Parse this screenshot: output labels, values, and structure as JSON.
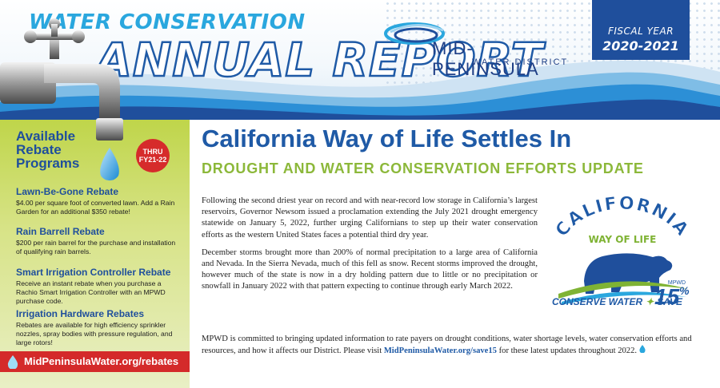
{
  "header": {
    "kicker": "WATER CONSERVATION",
    "title": "ANNUAL REPORT",
    "logo_name": "MID-PENINSULA",
    "logo_sub": "WATER DISTRICT",
    "fiscal_label": "FISCAL YEAR",
    "fiscal_year": "2020-2021"
  },
  "sidebar": {
    "title_lines": [
      "Available",
      "Rebate",
      "Programs"
    ],
    "badge_line1": "THRU",
    "badge_line2": "FY21-22",
    "rebates": [
      {
        "title": "Lawn-Be-Gone Rebate",
        "desc": "$4.00 per square foot of converted lawn. Add a Rain Garden for an additional $350 rebate!"
      },
      {
        "title": "Rain Barrell Rebate",
        "desc": "$200 per rain barrel for the purchase and installation of qualifying rain barrels."
      },
      {
        "title": "Smart Irrigation Controller Rebate",
        "desc": "Receive an instant rebate when you purchase a Rachio Smart Irrigation Controller with an MPWD purchase code."
      },
      {
        "title": "Irrigation Hardware Rebates",
        "desc": "Rebates are available for high efficiency sprinkler nozzles, spray bodies with pressure regulation, and large rotors!"
      }
    ],
    "url": "MidPeninsulaWater.org/rebates"
  },
  "main": {
    "headline": "California Way of Life Settles In",
    "subhead": "DROUGHT AND WATER CONSERVATION EFFORTS UPDATE",
    "para1": "Following the second driest year on record and with near-record low storage in California’s largest reservoirs, Governor Newsom issued a proclamation extending the July 2021 drought emergency statewide on January 5, 2022, further urging Californians to step up their water conservation efforts as the western United States faces a potential third dry year.",
    "para2": "December storms brought more than 200% of normal precipitation to a large area of California and Nevada. In the Sierra Nevada, much of this fell as snow. Recent storms improved the drought, however much of the state is now in a dry holding pattern due to little or no precipitation or snowfall in January 2022 with that pattern expecting to continue through early March 2022.",
    "para3_start": "MPWD is committed to bringing updated information to rate payers on drought conditions, water shortage levels, water conservation efforts and resources, and how it affects our District. Please visit ",
    "para3_link": "MidPeninsulaWater.org/save15",
    "para3_end": " for these latest updates throughout 2022."
  },
  "badge": {
    "arc_text": "CALIFORNIA",
    "way_text": "WAY OF LIFE",
    "org": "MPWD",
    "conserve": "CONSERVE WATER",
    "save": "SAVE",
    "percent": "15",
    "percent_sign": "%"
  },
  "colors": {
    "brand_blue": "#1f5aa6",
    "navy": "#1f4f9c",
    "light_blue": "#2aa7de",
    "green": "#8cb83a",
    "red": "#d42a2a"
  }
}
